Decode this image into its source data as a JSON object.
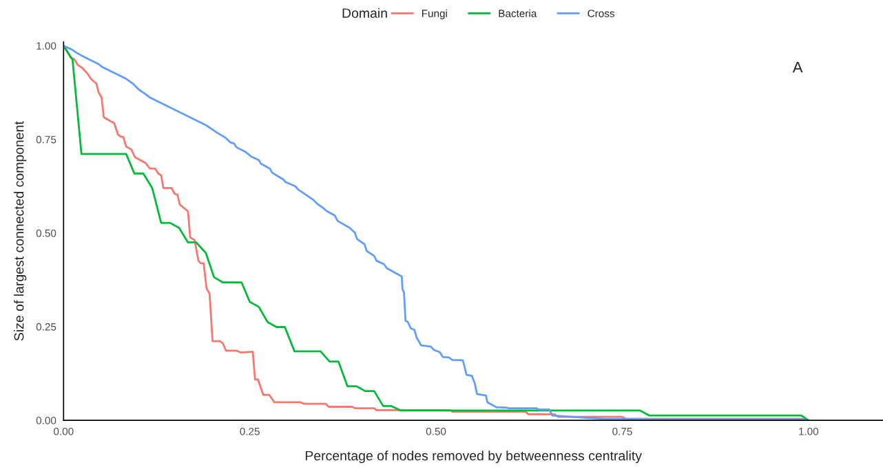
{
  "chart_data": {
    "type": "line",
    "xlabel": "Percentage of nodes removed by betweenness centrality",
    "ylabel": "Size of largest connected component",
    "legend_title": "Domain",
    "legend": "top",
    "grid": false,
    "line_style": "solid",
    "marker": "none",
    "xlim": [
      0,
      1.1
    ],
    "ylim": [
      0,
      1.01
    ],
    "xticks": [
      {
        "value": 0,
        "label": "0.00"
      },
      {
        "value": 0.25,
        "label": "0.25"
      },
      {
        "value": 0.5,
        "label": "0.50"
      },
      {
        "value": 0.75,
        "label": "0.75"
      },
      {
        "value": 1,
        "label": "1.00"
      }
    ],
    "yticks": [
      {
        "value": 0,
        "label": "0.00"
      },
      {
        "value": 0.25,
        "label": "0.25"
      },
      {
        "value": 0.5,
        "label": "0.50"
      },
      {
        "value": 0.75,
        "label": "0.75"
      },
      {
        "value": 1,
        "label": "1.00"
      }
    ],
    "annotations": [
      "A"
    ],
    "series": [
      {
        "name": "Fungi",
        "color": "#f8766d",
        "x": [
          0,
          0.01,
          0.014,
          0.019,
          0.025,
          0.032,
          0.037,
          0.044,
          0.047,
          0.051,
          0.054,
          0.068,
          0.073,
          0.077,
          0.08,
          0.084,
          0.091,
          0.096,
          0.11,
          0.116,
          0.123,
          0.127,
          0.131,
          0.134,
          0.145,
          0.149,
          0.153,
          0.156,
          0.167,
          0.17,
          0.176,
          0.181,
          0.184,
          0.188,
          0.192,
          0.196,
          0.2,
          0.21,
          0.214,
          0.218,
          0.232,
          0.238,
          0.254,
          0.257,
          0.261,
          0.264,
          0.268,
          0.276,
          0.283,
          0.318,
          0.323,
          0.352,
          0.356,
          0.387,
          0.392,
          0.417,
          0.42,
          0.519,
          0.522,
          0.62,
          0.624,
          0.659,
          0.664,
          0.75,
          0.755,
          0.99,
          1.0
        ],
        "values": [
          1.0,
          0.967,
          0.965,
          0.949,
          0.941,
          0.926,
          0.911,
          0.899,
          0.876,
          0.862,
          0.809,
          0.793,
          0.763,
          0.757,
          0.757,
          0.731,
          0.723,
          0.702,
          0.687,
          0.672,
          0.672,
          0.659,
          0.654,
          0.62,
          0.62,
          0.605,
          0.602,
          0.576,
          0.558,
          0.488,
          0.481,
          0.426,
          0.419,
          0.419,
          0.352,
          0.338,
          0.211,
          0.211,
          0.205,
          0.186,
          0.186,
          0.181,
          0.183,
          0.109,
          0.109,
          0.091,
          0.068,
          0.068,
          0.048,
          0.048,
          0.044,
          0.044,
          0.036,
          0.036,
          0.032,
          0.032,
          0.027,
          0.027,
          0.023,
          0.023,
          0.016,
          0.016,
          0.009,
          0.009,
          0.004,
          0.004,
          0.0
        ]
      },
      {
        "name": "Bacteria",
        "color": "#00ba38",
        "x": [
          0,
          0.012,
          0.024,
          0.084,
          0.095,
          0.107,
          0.119,
          0.131,
          0.143,
          0.155,
          0.167,
          0.178,
          0.191,
          0.202,
          0.214,
          0.239,
          0.25,
          0.262,
          0.274,
          0.286,
          0.297,
          0.31,
          0.345,
          0.357,
          0.369,
          0.381,
          0.393,
          0.405,
          0.417,
          0.429,
          0.44,
          0.453,
          0.774,
          0.786,
          0.99,
          1.0
        ],
        "values": [
          1.0,
          0.963,
          0.711,
          0.711,
          0.659,
          0.659,
          0.62,
          0.527,
          0.527,
          0.514,
          0.475,
          0.475,
          0.447,
          0.382,
          0.368,
          0.368,
          0.316,
          0.303,
          0.262,
          0.249,
          0.249,
          0.184,
          0.184,
          0.157,
          0.157,
          0.091,
          0.091,
          0.078,
          0.078,
          0.038,
          0.038,
          0.026,
          0.026,
          0.013,
          0.013,
          0.0
        ]
      },
      {
        "name": "Cross",
        "color": "#619cff",
        "x": [
          0,
          0.012,
          0.017,
          0.024,
          0.047,
          0.052,
          0.083,
          0.093,
          0.101,
          0.11,
          0.115,
          0.192,
          0.206,
          0.217,
          0.224,
          0.229,
          0.232,
          0.244,
          0.252,
          0.262,
          0.265,
          0.277,
          0.28,
          0.295,
          0.298,
          0.311,
          0.315,
          0.335,
          0.34,
          0.349,
          0.353,
          0.364,
          0.368,
          0.384,
          0.391,
          0.394,
          0.404,
          0.407,
          0.417,
          0.42,
          0.43,
          0.434,
          0.454,
          0.455,
          0.457,
          0.459,
          0.462,
          0.466,
          0.471,
          0.474,
          0.48,
          0.493,
          0.497,
          0.505,
          0.509,
          0.517,
          0.522,
          0.536,
          0.541,
          0.548,
          0.552,
          0.555,
          0.567,
          0.569,
          0.581,
          0.594,
          0.598,
          0.635,
          0.637,
          0.652,
          0.656,
          0.676,
          0.699,
          0.723,
          0.792,
          0.99,
          1.0
        ],
        "values": [
          1.0,
          0.989,
          0.982,
          0.974,
          0.951,
          0.943,
          0.913,
          0.899,
          0.883,
          0.871,
          0.863,
          0.787,
          0.768,
          0.755,
          0.742,
          0.739,
          0.729,
          0.717,
          0.704,
          0.695,
          0.685,
          0.672,
          0.661,
          0.643,
          0.636,
          0.625,
          0.616,
          0.589,
          0.579,
          0.566,
          0.559,
          0.547,
          0.532,
          0.514,
          0.501,
          0.484,
          0.47,
          0.452,
          0.439,
          0.426,
          0.417,
          0.406,
          0.384,
          0.35,
          0.341,
          0.266,
          0.263,
          0.246,
          0.241,
          0.221,
          0.2,
          0.197,
          0.188,
          0.182,
          0.169,
          0.168,
          0.161,
          0.16,
          0.121,
          0.119,
          0.099,
          0.07,
          0.066,
          0.048,
          0.035,
          0.034,
          0.032,
          0.032,
          0.029,
          0.029,
          0.013,
          0.01,
          0.007,
          0.004,
          0.002,
          0.002,
          0.0
        ]
      }
    ]
  }
}
